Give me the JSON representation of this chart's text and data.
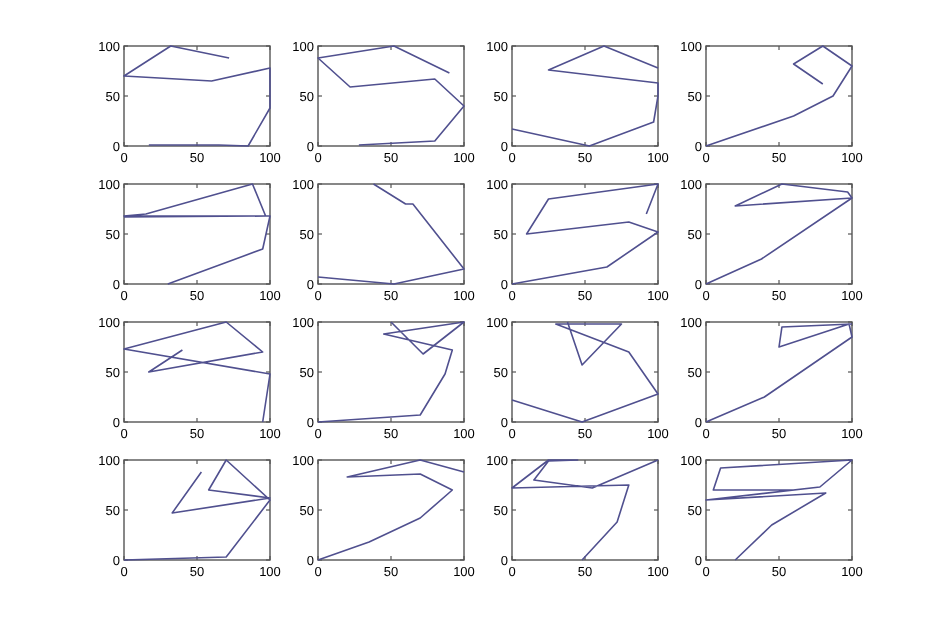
{
  "chart_data": [
    {
      "type": "line",
      "x": [
        72,
        32,
        0,
        60,
        100,
        100,
        85,
        65,
        17
      ],
      "values": [
        88,
        100,
        70,
        65,
        78,
        38,
        0,
        1,
        1
      ],
      "color": "#50508f",
      "xlim": [
        0,
        100
      ],
      "ylim": [
        0,
        100
      ],
      "xticks": [
        0,
        50,
        100
      ],
      "yticks": [
        0,
        50,
        100
      ]
    },
    {
      "type": "line",
      "x": [
        90,
        52,
        0,
        22,
        80,
        100,
        80,
        28
      ],
      "values": [
        73,
        100,
        88,
        59,
        67,
        40,
        5,
        1
      ],
      "color": "#50508f",
      "xlim": [
        0,
        100
      ],
      "ylim": [
        0,
        100
      ],
      "xticks": [
        0,
        50,
        100
      ],
      "yticks": [
        0,
        50,
        100
      ]
    },
    {
      "type": "line",
      "x": [
        100,
        63,
        25,
        100,
        100,
        97,
        53,
        0
      ],
      "values": [
        78,
        100,
        76,
        63,
        50,
        24,
        0,
        17
      ],
      "color": "#50508f",
      "xlim": [
        0,
        100
      ],
      "ylim": [
        0,
        100
      ],
      "xticks": [
        0,
        50,
        100
      ],
      "yticks": [
        0,
        50,
        100
      ]
    },
    {
      "type": "line",
      "x": [
        80,
        60,
        80,
        100,
        87,
        60,
        0
      ],
      "values": [
        62,
        82,
        100,
        80,
        50,
        30,
        0
      ],
      "color": "#50508f",
      "xlim": [
        0,
        100
      ],
      "ylim": [
        0,
        100
      ],
      "xticks": [
        0,
        50,
        100
      ],
      "yticks": [
        0,
        50,
        100
      ]
    },
    {
      "type": "line",
      "x": [
        30,
        95,
        100,
        0,
        15,
        88,
        97,
        0
      ],
      "values": [
        0,
        35,
        68,
        68,
        70,
        100,
        68,
        67
      ],
      "color": "#50508f",
      "xlim": [
        0,
        100
      ],
      "ylim": [
        0,
        100
      ],
      "xticks": [
        0,
        50,
        100
      ],
      "yticks": [
        0,
        50,
        100
      ]
    },
    {
      "type": "line",
      "x": [
        38,
        60,
        65,
        100,
        52,
        0
      ],
      "values": [
        100,
        80,
        80,
        15,
        0,
        7
      ],
      "color": "#50508f",
      "xlim": [
        0,
        100
      ],
      "ylim": [
        0,
        100
      ],
      "xticks": [
        0,
        50,
        100
      ],
      "yticks": [
        0,
        50,
        100
      ]
    },
    {
      "type": "line",
      "x": [
        92,
        100,
        25,
        10,
        80,
        100,
        65,
        0
      ],
      "values": [
        70,
        100,
        85,
        50,
        62,
        52,
        17,
        0
      ],
      "color": "#50508f",
      "xlim": [
        0,
        100
      ],
      "ylim": [
        0,
        100
      ],
      "xticks": [
        0,
        50,
        100
      ],
      "yticks": [
        0,
        50,
        100
      ]
    },
    {
      "type": "line",
      "x": [
        0,
        38,
        100,
        20,
        52,
        97,
        100
      ],
      "values": [
        0,
        25,
        86,
        78,
        100,
        92,
        86
      ],
      "color": "#50508f",
      "xlim": [
        0,
        100
      ],
      "ylim": [
        0,
        100
      ],
      "xticks": [
        0,
        50,
        100
      ],
      "yticks": [
        0,
        50,
        100
      ]
    },
    {
      "type": "line",
      "x": [
        40,
        17,
        95,
        70,
        0,
        100,
        95
      ],
      "values": [
        72,
        50,
        70,
        100,
        73,
        48,
        0
      ],
      "color": "#50508f",
      "xlim": [
        0,
        100
      ],
      "ylim": [
        0,
        100
      ],
      "xticks": [
        0,
        50,
        100
      ],
      "yticks": [
        0,
        50,
        100
      ]
    },
    {
      "type": "line",
      "x": [
        0,
        70,
        87,
        92,
        45,
        100,
        72,
        50
      ],
      "values": [
        0,
        7,
        48,
        72,
        88,
        100,
        68,
        100
      ],
      "color": "#50508f",
      "xlim": [
        0,
        100
      ],
      "ylim": [
        0,
        100
      ],
      "xticks": [
        0,
        50,
        100
      ],
      "yticks": [
        0,
        50,
        100
      ]
    },
    {
      "type": "line",
      "x": [
        0,
        48,
        100,
        80,
        30,
        75,
        48,
        38
      ],
      "values": [
        22,
        0,
        28,
        70,
        98,
        98,
        57,
        100
      ],
      "color": "#50508f",
      "xlim": [
        0,
        100
      ],
      "ylim": [
        0,
        100
      ],
      "xticks": [
        0,
        50,
        100
      ],
      "yticks": [
        0,
        50,
        100
      ]
    },
    {
      "type": "line",
      "x": [
        0,
        40,
        100,
        98,
        50,
        52,
        100
      ],
      "values": [
        0,
        25,
        85,
        98,
        75,
        95,
        98
      ],
      "color": "#50508f",
      "xlim": [
        0,
        100
      ],
      "ylim": [
        0,
        100
      ],
      "xticks": [
        0,
        50,
        100
      ],
      "yticks": [
        0,
        50,
        100
      ]
    },
    {
      "type": "line",
      "x": [
        0,
        70,
        100,
        70,
        58,
        100,
        33,
        53
      ],
      "values": [
        0,
        3,
        60,
        100,
        70,
        62,
        47,
        88
      ],
      "color": "#50508f",
      "xlim": [
        0,
        100
      ],
      "ylim": [
        0,
        100
      ],
      "xticks": [
        0,
        50,
        100
      ],
      "yticks": [
        0,
        50,
        100
      ]
    },
    {
      "type": "line",
      "x": [
        0,
        35,
        70,
        92,
        70,
        20,
        70,
        100
      ],
      "values": [
        0,
        18,
        42,
        70,
        86,
        83,
        100,
        88
      ],
      "color": "#50508f",
      "xlim": [
        0,
        100
      ],
      "ylim": [
        0,
        100
      ],
      "xticks": [
        0,
        50,
        100
      ],
      "yticks": [
        0,
        50,
        100
      ]
    },
    {
      "type": "line",
      "x": [
        48,
        72,
        80,
        0,
        25,
        45,
        25,
        15,
        55,
        100
      ],
      "values": [
        0,
        38,
        75,
        72,
        100,
        100,
        99,
        80,
        72,
        100
      ],
      "color": "#50508f",
      "xlim": [
        0,
        100
      ],
      "ylim": [
        0,
        100
      ],
      "xticks": [
        0,
        50,
        100
      ],
      "yticks": [
        0,
        50,
        100
      ]
    },
    {
      "type": "line",
      "x": [
        20,
        45,
        82,
        0,
        78,
        100,
        10,
        5,
        60
      ],
      "values": [
        0,
        35,
        67,
        60,
        73,
        100,
        92,
        70,
        70
      ],
      "color": "#50508f",
      "xlim": [
        0,
        100
      ],
      "ylim": [
        0,
        100
      ],
      "xticks": [
        0,
        50,
        100
      ],
      "yticks": [
        0,
        50,
        100
      ]
    }
  ]
}
